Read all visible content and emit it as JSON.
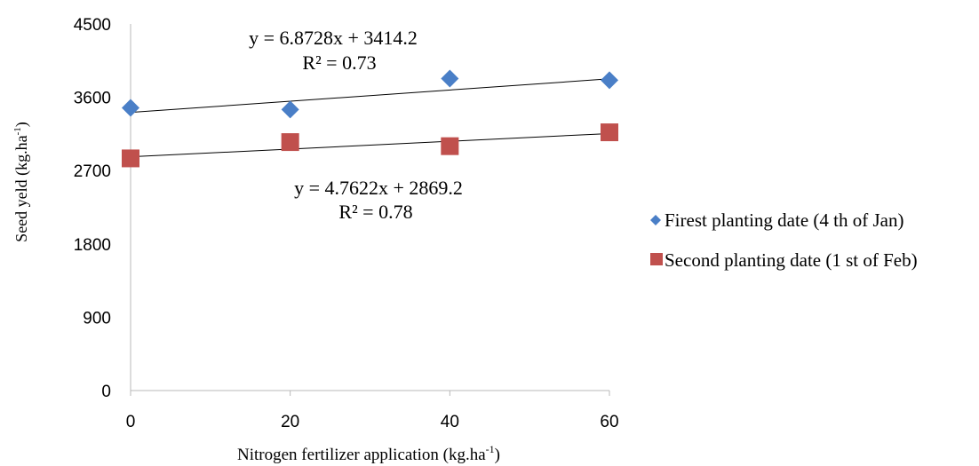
{
  "chart_data": {
    "type": "scatter",
    "xlabel_main": "Nitrogen fertilizer  application  (kg.ha",
    "xlabel_sup": "-1",
    "xlabel_end": ")",
    "ylabel_main": "Seed yeld  (kg.ha",
    "ylabel_sup": "-1",
    "ylabel_end": ")",
    "xlim": [
      0,
      60
    ],
    "ylim": [
      0,
      4500
    ],
    "x_ticks": [
      "0",
      "20",
      "40",
      "60"
    ],
    "y_ticks": [
      "0",
      "900",
      "1800",
      "2700",
      "3600",
      "4500"
    ],
    "grid": false,
    "legend_position": "right",
    "series": [
      {
        "name": "Firest planting date (4 th of Jan)",
        "marker": "diamond",
        "color": "#4a7fc7",
        "x": [
          0,
          20,
          40,
          60
        ],
        "y": [
          3470,
          3450,
          3830,
          3810
        ],
        "trendline": {
          "slope": 6.8728,
          "intercept": 3414.2
        },
        "equation": "y = 6.8728x + 3414.2",
        "r2": "R² = 0.73"
      },
      {
        "name": "Second planting date (1 st of Feb)",
        "marker": "square",
        "color": "#c0504d",
        "x": [
          0,
          20,
          40,
          60
        ],
        "y": [
          2850,
          3050,
          3000,
          3170
        ],
        "trendline": {
          "slope": 4.7622,
          "intercept": 2869.2
        },
        "equation": "y = 4.7622x + 2869.2",
        "r2": "R² = 0.78"
      }
    ]
  }
}
